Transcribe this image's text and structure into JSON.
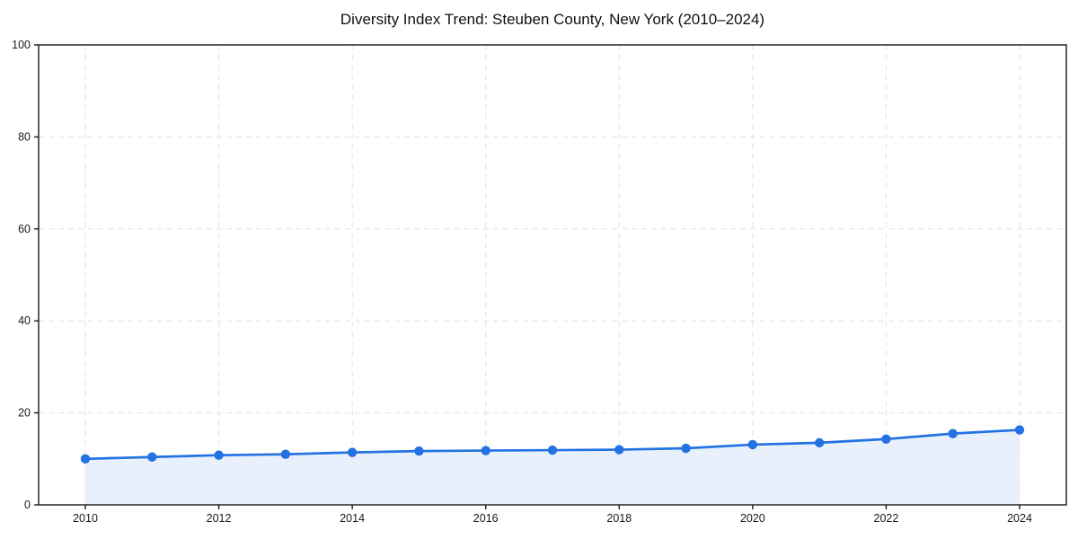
{
  "title": "Diversity Index Trend: Steuben County, New York (2010–2024)",
  "chart_data": {
    "type": "line",
    "title": "Diversity Index Trend: Steuben County, New York (2010–2024)",
    "xlabel": "",
    "ylabel": "",
    "x": [
      2010,
      2011,
      2012,
      2013,
      2014,
      2015,
      2016,
      2017,
      2018,
      2019,
      2020,
      2021,
      2022,
      2023,
      2024
    ],
    "series": [
      {
        "name": "Diversity Index",
        "values": [
          10.0,
          10.4,
          10.8,
          11.0,
          11.4,
          11.7,
          11.8,
          11.9,
          12.0,
          12.3,
          13.1,
          13.5,
          14.3,
          15.5,
          16.3
        ]
      }
    ],
    "ylim": [
      0,
      100
    ],
    "yticks": [
      0,
      20,
      40,
      60,
      80,
      100
    ],
    "xticks": [
      2010,
      2012,
      2014,
      2016,
      2018,
      2020,
      2022,
      2024
    ],
    "grid": "dashed",
    "legend": "none",
    "colors": {
      "line": "#2272e2",
      "marker": "#2272e2",
      "area_fill": "#e8f0fc",
      "gridline": "#e2e2e2",
      "spine": "#1a1a1a",
      "tick_text": "#1a1a1a",
      "background": "#ffffff"
    }
  }
}
